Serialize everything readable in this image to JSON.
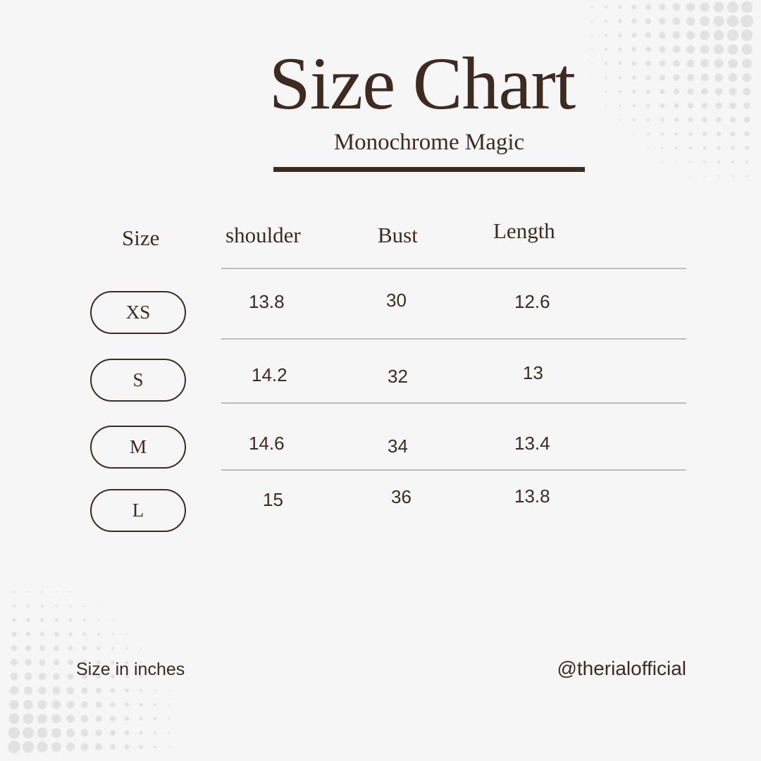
{
  "title": "Size Chart",
  "subtitle": "Monochrome Magic",
  "colors": {
    "text": "#3f2a20",
    "background": "#f6f6f6",
    "divider": "#bdbdbd",
    "dots": "#e2e2e2"
  },
  "table": {
    "headers": [
      "Size",
      "shoulder",
      "Bust",
      "Length"
    ],
    "rows": [
      {
        "size": "XS",
        "shoulder": "13.8",
        "bust": "30",
        "length": "12.6"
      },
      {
        "size": "S",
        "shoulder": "14.2",
        "bust": "32",
        "length": "13"
      },
      {
        "size": "M",
        "shoulder": "14.6",
        "bust": "34",
        "length": "13.4"
      },
      {
        "size": "L",
        "shoulder": "15",
        "bust": "36",
        "length": "13.8"
      }
    ]
  },
  "footer": {
    "note": "Size in inches",
    "handle": "@therialofficial"
  }
}
